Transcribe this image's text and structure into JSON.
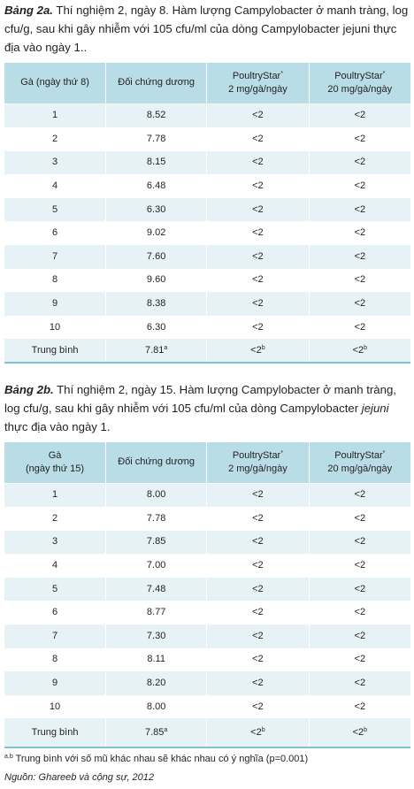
{
  "table_a": {
    "label": "Bảng 2a.",
    "caption": "Thí nghiệm 2, ngày 8. Hàm lượng Campylobacter ở manh tràng, log cfu/g, sau khi gây nhiễm với 105 cfu/ml của dòng Campylobacter jejuni thực địa vào ngày 1..",
    "headers": [
      "Gà (ngày thứ 8)",
      "Đối chứng dương",
      {
        "line1": "PoultryStar",
        "sup": "*",
        "line2": "2 mg/gà/ngày"
      },
      {
        "line1": "PoultryStar",
        "sup": "*",
        "line2": "20 mg/gà/ngày"
      }
    ],
    "rows": [
      [
        "1",
        "8.52",
        "<2",
        "<2"
      ],
      [
        "2",
        "7.78",
        "<2",
        "<2"
      ],
      [
        "3",
        "8.15",
        "<2",
        "<2"
      ],
      [
        "4",
        "6.48",
        "<2",
        "<2"
      ],
      [
        "5",
        "6.30",
        "<2",
        "<2"
      ],
      [
        "6",
        "9.02",
        "<2",
        "<2"
      ],
      [
        "7",
        "7.60",
        "<2",
        "<2"
      ],
      [
        "8",
        "9.60",
        "<2",
        "<2"
      ],
      [
        "9",
        "8.38",
        "<2",
        "<2"
      ],
      [
        "10",
        "6.30",
        "<2",
        "<2"
      ]
    ],
    "summary": {
      "label": "Trung bình",
      "values": [
        {
          "value": "7.81",
          "sup": "a"
        },
        {
          "value": "<2",
          "sup": "b"
        },
        {
          "value": "<2",
          "sup": "b"
        }
      ]
    }
  },
  "table_b": {
    "label": "Bảng 2b.",
    "caption_main": "Thí nghiệm 2, ngày 15. Hàm lượng Campylobacter ở manh tràng, log cfu/g, sau khi gây nhiễm với 105 cfu/ml của dòng Campylobacter ",
    "caption_species": "jejuni",
    "caption_end": " thực địa vào ngày 1.",
    "headers": [
      {
        "line1": "Gà",
        "line2": "(ngày thứ 15)"
      },
      "Đối chứng dương",
      {
        "line1": "PoultryStar",
        "sup": "*",
        "line2": "2 mg/gà/ngày"
      },
      {
        "line1": "PoultryStar",
        "sup": "*",
        "line2": "20 mg/gà/ngày"
      }
    ],
    "rows": [
      [
        "1",
        "8.00",
        "<2",
        "<2"
      ],
      [
        "2",
        "7.78",
        "<2",
        "<2"
      ],
      [
        "3",
        "7.85",
        "<2",
        "<2"
      ],
      [
        "4",
        "7.00",
        "<2",
        "<2"
      ],
      [
        "5",
        "7.48",
        "<2",
        "<2"
      ],
      [
        "6",
        "8.77",
        "<2",
        "<2"
      ],
      [
        "7",
        "7.30",
        "<2",
        "<2"
      ],
      [
        "8",
        "8.11",
        "<2",
        "<2"
      ],
      [
        "9",
        "8.20",
        "<2",
        "<2"
      ],
      [
        "10",
        "8.00",
        "<2",
        "<2"
      ]
    ],
    "summary": {
      "label": "Trung bình",
      "values": [
        {
          "value": "7.85",
          "sup": "a"
        },
        {
          "value": "<2",
          "sup": "b"
        },
        {
          "value": "<2",
          "sup": "b"
        }
      ]
    }
  },
  "footnote": {
    "marks": "a,b",
    "text": " Trung bình với số mũ khác nhau sẽ khác nhau có ý nghĩa (p=0.001)"
  },
  "source": "Nguồn: Ghareeb và cộng sự, 2012",
  "colors": {
    "header_bg": "#b9dde6",
    "stripe_bg": "#e6f2f6",
    "bottom_rule": "#7cc4d5",
    "text": "#231f20"
  }
}
